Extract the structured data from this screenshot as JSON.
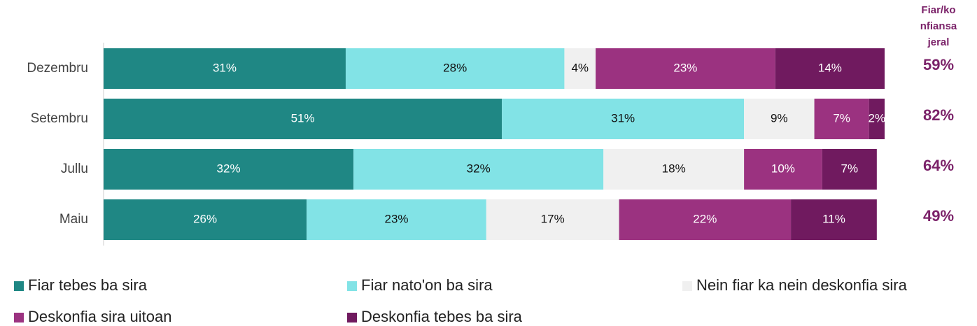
{
  "chart_data": {
    "type": "stacked_barh",
    "categories": [
      "Dezembru",
      "Setembru",
      "Jullu",
      "Maiu"
    ],
    "xlim": [
      0,
      100
    ],
    "series": [
      {
        "name": "Fiar tebes ba sira",
        "color": "#1f8784",
        "values": [
          31,
          51,
          32,
          26
        ],
        "value_labels": [
          "31%",
          "51%",
          "32%",
          "26%"
        ]
      },
      {
        "name": "Fiar nato'on ba sira",
        "color": "#82e3e6",
        "values": [
          28,
          31,
          32,
          23
        ],
        "value_labels": [
          "28%",
          "31%",
          "32%",
          "23%"
        ]
      },
      {
        "name": "Nein fiar ka nein deskonfia sira",
        "color": "#f0f0f0",
        "values": [
          4,
          9,
          18,
          17
        ],
        "value_labels": [
          "4%",
          "9%",
          "18%",
          "17%"
        ]
      },
      {
        "name": "Deskonfia sira uitoan",
        "color": "#9b3280",
        "values": [
          23,
          7,
          10,
          22
        ],
        "value_labels": [
          "23%",
          "7%",
          "10%",
          "22%"
        ]
      },
      {
        "name": "Deskonfia tebes ba sira",
        "color": "#701a5f",
        "values": [
          14,
          2,
          7,
          11
        ],
        "value_labels": [
          "14%",
          "2%",
          "7%",
          "11%"
        ]
      }
    ],
    "totals": {
      "title": "Fiar/konfiansa jeral",
      "color": "#7b2269",
      "values": [
        59,
        82,
        64,
        49
      ],
      "value_labels": [
        "59%",
        "82%",
        "64%",
        "49%"
      ]
    }
  }
}
